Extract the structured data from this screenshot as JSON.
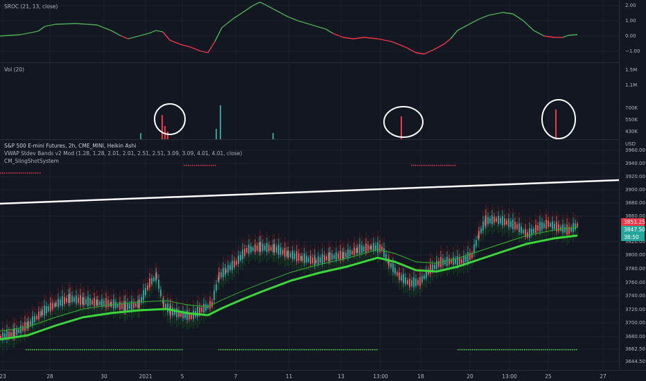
{
  "sroc": {
    "title": "SROC (21, 13, close)",
    "y_ticks": [
      "2.00",
      "1.00",
      "0.00",
      "−1.00"
    ]
  },
  "volume": {
    "title": "Vol (20)",
    "y_ticks": [
      "1.5M",
      "1.1M",
      "700K",
      "550K",
      "430K"
    ]
  },
  "main": {
    "symbol_line": "S&P 500 E-mini Futures, 2h, CME_MINI, Heikin Ashi",
    "indicator_1": "VWAP Stdev Bands v2 Mod (1.28, 1.28, 2.01, 2.01, 2.51, 2.51, 3.09, 3.09, 4.01, 4.01, close)",
    "indicator_2": "CM_SlingShotSystem",
    "currency": "USD",
    "y_ticks": [
      "3960.00",
      "3940.00",
      "3920.00",
      "3900.00",
      "3880.00",
      "3860.00",
      "3820.00",
      "3800.00",
      "3780.00",
      "3760.00",
      "3740.00",
      "3720.00",
      "3700.00",
      "3680.00",
      "3662.50",
      "3644.50"
    ],
    "price_tags": [
      {
        "text": "3851.25",
        "color": "#f23645"
      },
      {
        "text": "3847.50",
        "color": "#26a69a"
      },
      {
        "text": "38:50",
        "color": "#26a69a"
      }
    ]
  },
  "x_axis": [
    "23",
    "28",
    "30",
    "2021",
    "5",
    "7",
    "11",
    "13",
    "13:00",
    "18",
    "20",
    "13:00",
    "25",
    "27"
  ],
  "colors": {
    "background": "#131722",
    "sroc_up": "#4caf50",
    "sroc_down": "#f23645",
    "vwap": "#3cd63c",
    "trendline": "#ffffff"
  }
}
